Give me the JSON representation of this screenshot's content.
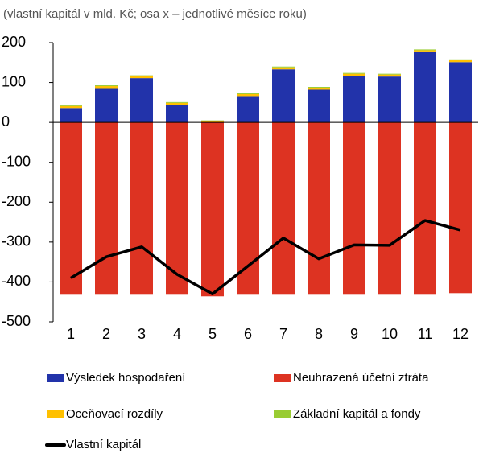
{
  "chart_data": {
    "type": "bar",
    "stacked": true,
    "subtitle": "(vlastní kapitál v mld. Kč; osa x – jednotlivé měsíce roku)",
    "categories": [
      "1",
      "2",
      "3",
      "4",
      "5",
      "6",
      "7",
      "8",
      "9",
      "10",
      "11",
      "12"
    ],
    "series": [
      {
        "name": "Výsledek hospodaření",
        "color": "#2233aa",
        "values": [
          36,
          86,
          111,
          44,
          0,
          66,
          133,
          82,
          117,
          115,
          176,
          151
        ]
      },
      {
        "name": "Neuhrazená účetní ztráta",
        "color": "#dd3322",
        "values": [
          -432,
          -432,
          -432,
          -432,
          -436,
          -432,
          -432,
          -432,
          -432,
          -432,
          -432,
          -428
        ]
      },
      {
        "name": "Oceňovací rozdíly",
        "color": "#ffc000",
        "values": [
          5,
          5,
          5,
          5,
          3,
          5,
          5,
          5,
          5,
          5,
          5,
          5
        ]
      },
      {
        "name": "Základní kapitál a fondy",
        "color": "#99cc33",
        "values": [
          2,
          2,
          2,
          2,
          2,
          2,
          2,
          2,
          2,
          2,
          2,
          2
        ]
      },
      {
        "name": "Vlastní kapitál",
        "color": "#000000",
        "type": "line",
        "values": [
          -390,
          -337,
          -312,
          -381,
          -430,
          -360,
          -290,
          -342,
          -307,
          -308,
          -246,
          -270
        ]
      }
    ],
    "ylim": [
      -500,
      200
    ],
    "yticks": [
      200,
      100,
      0,
      -100,
      -200,
      -300,
      -400,
      -500
    ]
  }
}
